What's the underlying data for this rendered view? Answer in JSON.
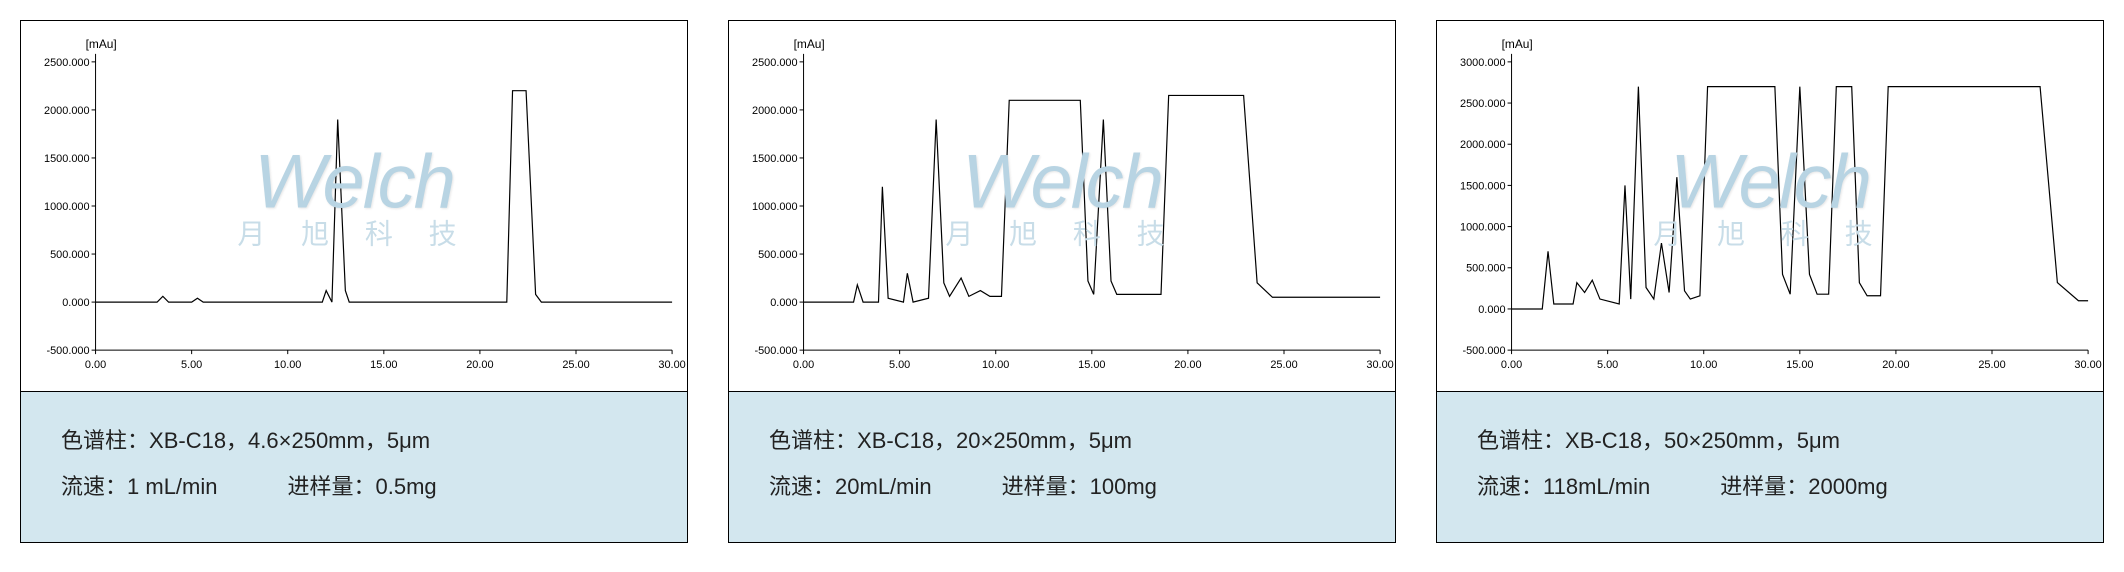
{
  "watermark": {
    "logo": "Welch",
    "sub": "月 旭 科 技"
  },
  "panels": [
    {
      "axis_unit": "[mAu]",
      "info": {
        "column_label": "色谱柱：",
        "column_value": "XB-C18，4.6×250mm，5μm",
        "flow_label": "流速：",
        "flow_value": "1 mL/min",
        "inj_label": "进样量：",
        "inj_value": "0.5mg"
      },
      "chart": {
        "xlim": [
          0,
          30
        ],
        "ylim": [
          -500,
          2500
        ],
        "xticks": [
          0,
          5,
          10,
          15,
          20,
          25,
          30
        ],
        "xticklabels": [
          "0.00",
          "5.00",
          "10.00",
          "15.00",
          "20.00",
          "25.00",
          "30.00"
        ],
        "yticks": [
          -500,
          0,
          500,
          1000,
          1500,
          2000,
          2500
        ],
        "yticklabels": [
          "-500.000",
          "0.000",
          "500.000",
          "1000.000",
          "1500.000",
          "2000.000",
          "2500.000"
        ],
        "line_color": "#000000",
        "line_width": 1.2,
        "background_color": "#ffffff",
        "data": [
          [
            0,
            0
          ],
          [
            3.2,
            0
          ],
          [
            3.5,
            60
          ],
          [
            3.8,
            0
          ],
          [
            5.0,
            0
          ],
          [
            5.3,
            40
          ],
          [
            5.6,
            0
          ],
          [
            11.8,
            0
          ],
          [
            12.0,
            120
          ],
          [
            12.3,
            0
          ],
          [
            12.6,
            1900
          ],
          [
            13.0,
            120
          ],
          [
            13.2,
            0
          ],
          [
            21.4,
            0
          ],
          [
            21.7,
            2200
          ],
          [
            22.4,
            2200
          ],
          [
            22.9,
            80
          ],
          [
            23.2,
            0
          ],
          [
            30,
            0
          ]
        ]
      }
    },
    {
      "axis_unit": "[mAu]",
      "info": {
        "column_label": "色谱柱：",
        "column_value": "XB-C18，20×250mm，5μm",
        "flow_label": "流速：",
        "flow_value": "20mL/min",
        "inj_label": "进样量：",
        "inj_value": "100mg"
      },
      "chart": {
        "xlim": [
          0,
          30
        ],
        "ylim": [
          -500,
          2500
        ],
        "xticks": [
          0,
          5,
          10,
          15,
          20,
          25,
          30
        ],
        "xticklabels": [
          "0.00",
          "5.00",
          "10.00",
          "15.00",
          "20.00",
          "25.00",
          "30.00"
        ],
        "yticks": [
          -500,
          0,
          500,
          1000,
          1500,
          2000,
          2500
        ],
        "yticklabels": [
          "-500.000",
          "0.000",
          "500.000",
          "1000.000",
          "1500.000",
          "2000.000",
          "2500.000"
        ],
        "line_color": "#000000",
        "line_width": 1.2,
        "background_color": "#ffffff",
        "data": [
          [
            0,
            0
          ],
          [
            2.6,
            0
          ],
          [
            2.8,
            180
          ],
          [
            3.1,
            0
          ],
          [
            3.9,
            0
          ],
          [
            4.1,
            1200
          ],
          [
            4.4,
            40
          ],
          [
            5.2,
            0
          ],
          [
            5.4,
            300
          ],
          [
            5.7,
            0
          ],
          [
            6.5,
            40
          ],
          [
            6.9,
            1900
          ],
          [
            7.3,
            200
          ],
          [
            7.6,
            60
          ],
          [
            8.2,
            250
          ],
          [
            8.6,
            60
          ],
          [
            9.2,
            120
          ],
          [
            9.7,
            60
          ],
          [
            10.3,
            60
          ],
          [
            10.7,
            2100
          ],
          [
            14.4,
            2100
          ],
          [
            14.8,
            220
          ],
          [
            15.1,
            80
          ],
          [
            15.6,
            1900
          ],
          [
            16.0,
            220
          ],
          [
            16.3,
            80
          ],
          [
            18.6,
            80
          ],
          [
            19.0,
            2150
          ],
          [
            22.9,
            2150
          ],
          [
            23.6,
            200
          ],
          [
            24.4,
            50
          ],
          [
            30,
            50
          ]
        ]
      }
    },
    {
      "axis_unit": "[mAu]",
      "info": {
        "column_label": "色谱柱：",
        "column_value": "XB-C18，50×250mm，5μm",
        "flow_label": "流速：",
        "flow_value": "118mL/min",
        "inj_label": "进样量：",
        "inj_value": "2000mg"
      },
      "chart": {
        "xlim": [
          0,
          30
        ],
        "ylim": [
          -500,
          3000
        ],
        "xticks": [
          0,
          5,
          10,
          15,
          20,
          25,
          30
        ],
        "xticklabels": [
          "0.00",
          "5.00",
          "10.00",
          "15.00",
          "20.00",
          "25.00",
          "30.00"
        ],
        "yticks": [
          -500,
          0,
          500,
          1000,
          1500,
          2000,
          2500,
          3000
        ],
        "yticklabels": [
          "-500.000",
          "0.000",
          "500.000",
          "1000.000",
          "1500.000",
          "2000.000",
          "2500.000",
          "3000.000"
        ],
        "line_color": "#000000",
        "line_width": 1.2,
        "background_color": "#ffffff",
        "data": [
          [
            0,
            0
          ],
          [
            1.6,
            0
          ],
          [
            1.9,
            700
          ],
          [
            2.2,
            60
          ],
          [
            3.2,
            60
          ],
          [
            3.4,
            320
          ],
          [
            3.8,
            200
          ],
          [
            4.2,
            350
          ],
          [
            4.6,
            120
          ],
          [
            5.6,
            60
          ],
          [
            5.9,
            1500
          ],
          [
            6.2,
            120
          ],
          [
            6.6,
            2700
          ],
          [
            7.0,
            260
          ],
          [
            7.4,
            120
          ],
          [
            7.8,
            800
          ],
          [
            8.2,
            200
          ],
          [
            8.6,
            1600
          ],
          [
            9.0,
            220
          ],
          [
            9.3,
            120
          ],
          [
            9.8,
            160
          ],
          [
            10.2,
            2700
          ],
          [
            13.7,
            2700
          ],
          [
            14.1,
            420
          ],
          [
            14.5,
            180
          ],
          [
            15.0,
            2700
          ],
          [
            15.5,
            420
          ],
          [
            15.9,
            180
          ],
          [
            16.5,
            180
          ],
          [
            16.9,
            2700
          ],
          [
            17.7,
            2700
          ],
          [
            18.1,
            320
          ],
          [
            18.5,
            160
          ],
          [
            19.2,
            160
          ],
          [
            19.6,
            2700
          ],
          [
            27.5,
            2700
          ],
          [
            28.4,
            320
          ],
          [
            29.5,
            100
          ],
          [
            30,
            100
          ]
        ]
      }
    }
  ]
}
